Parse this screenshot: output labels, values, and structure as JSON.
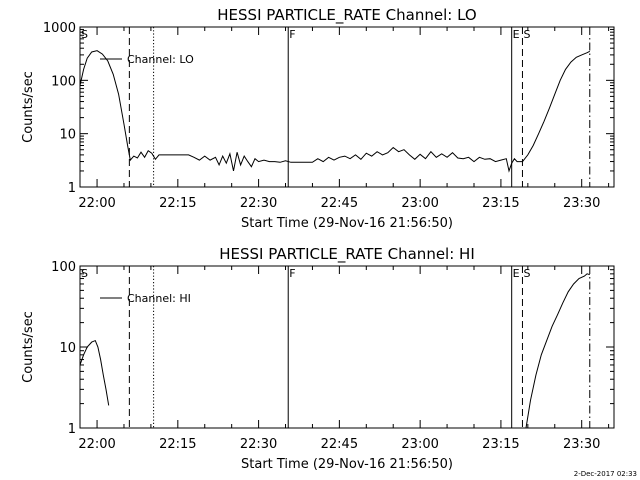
{
  "footer_date": "2-Dec-2017 02:33",
  "chart_data": [
    {
      "type": "line",
      "title": "HESSI PARTICLE_RATE Channel: LO",
      "xlabel": "Start Time (29-Nov-16 21:56:50)",
      "ylabel": "Counts/sec",
      "yscale": "log",
      "xlim": [
        "21:56:50",
        "23:36:00"
      ],
      "ylim": [
        1,
        1000
      ],
      "x_ticks": [
        "22:00",
        "22:15",
        "22:30",
        "22:45",
        "23:00",
        "23:15",
        "23:30"
      ],
      "y_ticks": [
        "1",
        "10",
        "100",
        "1000"
      ],
      "legend": "Channel: LO",
      "legend_position": "top-left",
      "markers": [
        {
          "time": "21:56:50",
          "style": "solid",
          "label": "S"
        },
        {
          "time": "22:06:00",
          "style": "dashed",
          "label": ""
        },
        {
          "time": "22:10:30",
          "style": "dotted",
          "label": ""
        },
        {
          "time": "22:35:30",
          "style": "solid",
          "label": "F"
        },
        {
          "time": "23:17:00",
          "style": "solid",
          "label": "E"
        },
        {
          "time": "23:19:00",
          "style": "dashed",
          "label": "S"
        },
        {
          "time": "23:31:30",
          "style": "dashdot",
          "label": ""
        }
      ],
      "series": [
        {
          "name": "Channel: LO",
          "x": [
            "21:56:50",
            "21:57:30",
            "21:58:10",
            "21:59:00",
            "22:00:00",
            "22:01:00",
            "22:02:00",
            "22:03:00",
            "22:04:00",
            "22:05:00",
            "22:05:40",
            "22:06:10",
            "22:06:50",
            "22:07:30",
            "22:08:10",
            "22:08:50",
            "22:09:30",
            "22:10:10",
            "22:10:50",
            "22:11:30",
            "22:13:00",
            "22:15:00",
            "22:17:00",
            "22:18:00",
            "22:19:00",
            "22:20:00",
            "22:21:00",
            "22:22:00",
            "22:22:40",
            "22:23:20",
            "22:24:00",
            "22:24:40",
            "22:25:20",
            "22:26:00",
            "22:26:40",
            "22:27:20",
            "22:28:00",
            "22:28:40",
            "22:29:20",
            "22:30:00",
            "22:31:00",
            "22:32:00",
            "22:33:00",
            "22:34:00",
            "22:35:00",
            "22:36:00",
            "22:38:00",
            "22:40:00",
            "22:41:00",
            "22:42:00",
            "22:43:00",
            "22:44:00",
            "22:45:00",
            "22:46:00",
            "22:47:00",
            "22:48:00",
            "22:49:00",
            "22:50:00",
            "22:51:00",
            "22:52:00",
            "22:53:00",
            "22:54:00",
            "22:55:00",
            "22:56:00",
            "22:57:00",
            "22:58:00",
            "22:59:00",
            "23:00:00",
            "23:01:00",
            "23:02:00",
            "23:03:00",
            "23:04:00",
            "23:05:00",
            "23:06:00",
            "23:07:00",
            "23:08:00",
            "23:09:00",
            "23:10:00",
            "23:11:00",
            "23:12:00",
            "23:13:00",
            "23:14:00",
            "23:15:00",
            "23:16:00",
            "23:16:30",
            "23:17:00",
            "23:17:30",
            "23:18:00",
            "23:19:00",
            "23:20:00",
            "23:21:00",
            "23:22:00",
            "23:23:00",
            "23:24:00",
            "23:25:00",
            "23:26:00",
            "23:27:00",
            "23:28:00",
            "23:29:00",
            "23:30:00",
            "23:31:00",
            "23:31:30"
          ],
          "values": [
            80,
            160,
            260,
            340,
            360,
            310,
            230,
            130,
            55,
            15,
            6,
            3.2,
            3.8,
            3.5,
            4.5,
            3.6,
            4.8,
            4.3,
            3.3,
            4.0,
            4.0,
            4.0,
            4.0,
            3.6,
            3.2,
            3.8,
            3.2,
            3.6,
            2.6,
            3.8,
            2.8,
            4.2,
            2.0,
            4.5,
            2.6,
            3.8,
            3.0,
            2.4,
            3.4,
            3.0,
            3.2,
            3.0,
            3.0,
            2.9,
            3.1,
            2.9,
            2.9,
            2.9,
            3.4,
            3.0,
            3.6,
            3.2,
            3.6,
            3.8,
            3.4,
            4.0,
            3.3,
            4.3,
            3.8,
            4.6,
            4.0,
            4.4,
            5.5,
            4.6,
            5.0,
            4.0,
            3.3,
            4.1,
            3.4,
            4.6,
            3.6,
            4.2,
            3.6,
            4.4,
            3.5,
            3.4,
            3.6,
            3.0,
            3.6,
            3.3,
            3.4,
            3.0,
            3.2,
            3.4,
            2.0,
            2.8,
            3.4,
            3.0,
            3.0,
            4.0,
            6,
            10,
            17,
            30,
            55,
            100,
            160,
            220,
            270,
            300,
            330,
            350
          ]
        }
      ]
    },
    {
      "type": "line",
      "title": "HESSI PARTICLE_RATE Channel: HI",
      "xlabel": "Start Time (29-Nov-16 21:56:50)",
      "ylabel": "Counts/sec",
      "yscale": "log",
      "xlim": [
        "21:56:50",
        "23:36:00"
      ],
      "ylim": [
        1,
        100
      ],
      "x_ticks": [
        "22:00",
        "22:15",
        "22:30",
        "22:45",
        "23:00",
        "23:15",
        "23:30"
      ],
      "y_ticks": [
        "1",
        "10",
        "100"
      ],
      "legend": "Channel: HI",
      "legend_position": "top-left",
      "markers": [
        {
          "time": "21:56:50",
          "style": "solid",
          "label": "S"
        },
        {
          "time": "22:06:00",
          "style": "dashed",
          "label": ""
        },
        {
          "time": "22:10:30",
          "style": "dotted",
          "label": ""
        },
        {
          "time": "22:35:30",
          "style": "solid",
          "label": "F"
        },
        {
          "time": "23:17:00",
          "style": "solid",
          "label": "E"
        },
        {
          "time": "23:19:00",
          "style": "dashed",
          "label": "S"
        },
        {
          "time": "23:31:30",
          "style": "dashdot",
          "label": ""
        }
      ],
      "series": [
        {
          "name": "Channel: HI",
          "x": [
            "21:56:50",
            "21:57:30",
            "21:58:10",
            "21:59:00",
            "21:59:40",
            "22:00:10",
            "22:00:40",
            "22:01:10",
            "22:01:40",
            "22:02:10"
          ],
          "values": [
            6,
            8,
            10,
            11.5,
            12,
            10,
            7,
            4.5,
            3.0,
            1.9
          ]
        },
        {
          "name": "Channel: HI",
          "x": [
            "23:19:40",
            "23:20:30",
            "23:21:30",
            "23:22:30",
            "23:23:30",
            "23:24:30",
            "23:25:30",
            "23:26:30",
            "23:27:30",
            "23:28:30",
            "23:29:30",
            "23:30:30",
            "23:31:00",
            "23:31:30"
          ],
          "values": [
            1,
            2.2,
            4.5,
            8,
            12,
            18,
            25,
            35,
            48,
            60,
            70,
            75,
            80,
            78
          ]
        }
      ]
    }
  ]
}
